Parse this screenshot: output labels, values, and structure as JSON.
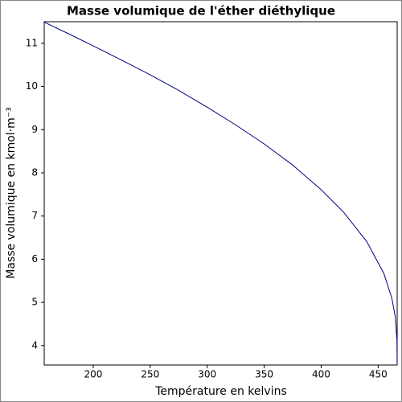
{
  "chart_data": {
    "type": "line",
    "title": "Masse volumique de l'éther diéthylique",
    "x_label": "Température en kelvins",
    "y_label": "Masse volumique en kmol·m⁻³",
    "x": [
      157,
      180,
      200,
      225,
      250,
      275,
      300,
      325,
      350,
      375,
      400,
      420,
      440,
      455,
      462,
      465,
      466.5,
      466.7
    ],
    "series": [
      {
        "color": "#000080",
        "values": [
          11.49,
          11.2,
          10.94,
          10.61,
          10.27,
          9.91,
          9.52,
          9.11,
          8.67,
          8.18,
          7.61,
          7.08,
          6.41,
          5.67,
          5.1,
          4.67,
          4.13,
          3.56
        ]
      }
    ],
    "xlim": [
      157,
      466.7
    ],
    "xticks": [
      200,
      250,
      300,
      350,
      400,
      450
    ],
    "ylim": [
      3.55,
      11.5
    ],
    "yticks": [
      4,
      5,
      6,
      7,
      8,
      9,
      10,
      11
    ],
    "grid": false
  }
}
